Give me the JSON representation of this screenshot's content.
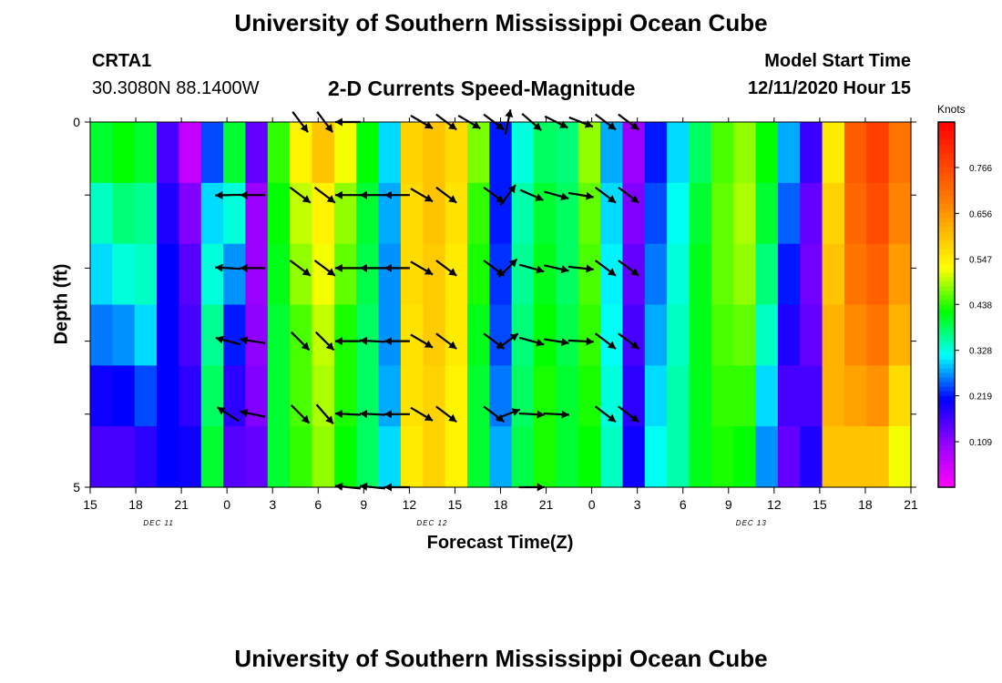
{
  "header": {
    "title": "University of Southern Mississippi Ocean Cube",
    "station_id": "CRTA1",
    "station_coords": "30.3080N 88.1400W",
    "chart_title": "2-D Currents Speed-Magnitude",
    "model_label": "Model Start Time",
    "model_time": "12/11/2020 Hour 15"
  },
  "footer": {
    "title": "University of Southern Mississippi Ocean Cube"
  },
  "chart_data": {
    "type": "heatmap",
    "title": "2-D Currents Speed-Magnitude",
    "xlabel": "Forecast Time(Z)",
    "ylabel": "Depth (ft)",
    "ylim": [
      0,
      5
    ],
    "y_ticks": [
      "0",
      "5"
    ],
    "x_tick_labels": [
      "15",
      "18",
      "21",
      "0",
      "3",
      "6",
      "9",
      "12",
      "15",
      "18",
      "21",
      "0",
      "3",
      "6",
      "9",
      "12",
      "15",
      "18",
      "21"
    ],
    "date_labels": [
      {
        "label": "DEC 11",
        "after_tick": 1
      },
      {
        "label": "DEC 12",
        "after_tick": 7
      },
      {
        "label": "DEC 13",
        "after_tick": 14
      }
    ],
    "colorbar": {
      "units": "Knots",
      "min": 0.0,
      "max": 0.875,
      "labels": [
        "0.766",
        "0.656",
        "0.547",
        "0.438",
        "0.328",
        "0.219",
        "0.109"
      ]
    },
    "speed_columns": [
      [
        0.4,
        0.34,
        0.3,
        0.26,
        0.2,
        0.16
      ],
      [
        0.42,
        0.37,
        0.33,
        0.27,
        0.21,
        0.16
      ],
      [
        0.4,
        0.36,
        0.34,
        0.3,
        0.24,
        0.18
      ],
      [
        0.16,
        0.19,
        0.21,
        0.21,
        0.21,
        0.21
      ],
      [
        0.06,
        0.12,
        0.15,
        0.16,
        0.18,
        0.2
      ],
      [
        0.24,
        0.3,
        0.33,
        0.36,
        0.38,
        0.4
      ],
      [
        0.4,
        0.33,
        0.27,
        0.22,
        0.18,
        0.15
      ],
      [
        0.14,
        0.1,
        0.1,
        0.11,
        0.12,
        0.14
      ],
      [
        0.44,
        0.42,
        0.41,
        0.4,
        0.4,
        0.4
      ],
      [
        0.54,
        0.5,
        0.48,
        0.45,
        0.45,
        0.44
      ],
      [
        0.6,
        0.54,
        0.52,
        0.5,
        0.49,
        0.48
      ],
      [
        0.52,
        0.48,
        0.46,
        0.43,
        0.43,
        0.42
      ],
      [
        0.42,
        0.4,
        0.39,
        0.38,
        0.38,
        0.38
      ],
      [
        0.3,
        0.28,
        0.27,
        0.27,
        0.28,
        0.3
      ],
      [
        0.58,
        0.57,
        0.57,
        0.56,
        0.56,
        0.55
      ],
      [
        0.6,
        0.6,
        0.59,
        0.59,
        0.58,
        0.58
      ],
      [
        0.57,
        0.56,
        0.55,
        0.55,
        0.54,
        0.54
      ],
      [
        0.47,
        0.44,
        0.43,
        0.41,
        0.4,
        0.4
      ],
      [
        0.22,
        0.22,
        0.23,
        0.24,
        0.26,
        0.28
      ],
      [
        0.33,
        0.35,
        0.36,
        0.37,
        0.38,
        0.39
      ],
      [
        0.38,
        0.4,
        0.41,
        0.42,
        0.43,
        0.43
      ],
      [
        0.37,
        0.38,
        0.38,
        0.39,
        0.4,
        0.4
      ],
      [
        0.48,
        0.46,
        0.45,
        0.44,
        0.43,
        0.42
      ],
      [
        0.28,
        0.3,
        0.31,
        0.32,
        0.33,
        0.34
      ],
      [
        0.1,
        0.12,
        0.14,
        0.16,
        0.18,
        0.2
      ],
      [
        0.22,
        0.24,
        0.26,
        0.28,
        0.3,
        0.32
      ],
      [
        0.3,
        0.32,
        0.33,
        0.34,
        0.35,
        0.35
      ],
      [
        0.38,
        0.4,
        0.41,
        0.41,
        0.41,
        0.41
      ],
      [
        0.45,
        0.46,
        0.46,
        0.45,
        0.44,
        0.43
      ],
      [
        0.48,
        0.49,
        0.48,
        0.46,
        0.44,
        0.42
      ],
      [
        0.42,
        0.4,
        0.37,
        0.34,
        0.3,
        0.27
      ],
      [
        0.28,
        0.25,
        0.22,
        0.19,
        0.16,
        0.14
      ],
      [
        0.17,
        0.14,
        0.13,
        0.14,
        0.16,
        0.19
      ],
      [
        0.55,
        0.58,
        0.6,
        0.62,
        0.62,
        0.6
      ],
      [
        0.74,
        0.72,
        0.7,
        0.67,
        0.64,
        0.6
      ],
      [
        0.78,
        0.76,
        0.73,
        0.7,
        0.66,
        0.6
      ],
      [
        0.7,
        0.68,
        0.65,
        0.62,
        0.57,
        0.52
      ]
    ],
    "vector_rows_depth": [
      0,
      1,
      2,
      3,
      4,
      5
    ],
    "vectors": [
      {
        "x": 16.8,
        "dir": [
          [
            0,
            0
          ],
          [
            -0.9,
            0.02
          ],
          [
            -0.9,
            -0.05
          ],
          [
            -0.95,
            -0.25
          ],
          [
            -0.85,
            -0.55
          ],
          [
            0,
            0
          ]
        ]
      },
      {
        "x": 19.8,
        "dir": [
          [
            0,
            0
          ],
          [
            -0.9,
            0
          ],
          [
            -0.9,
            0
          ],
          [
            -0.95,
            -0.15
          ],
          [
            -0.95,
            -0.2
          ],
          [
            0,
            0
          ]
        ]
      },
      {
        "x": 25.6,
        "dir": [
          [
            0.6,
            0.8
          ],
          [
            0.8,
            0.6
          ],
          [
            0.8,
            0.6
          ],
          [
            0.7,
            0.7
          ],
          [
            0.7,
            0.7
          ],
          [
            0,
            0
          ]
        ]
      },
      {
        "x": 28.6,
        "dir": [
          [
            0.6,
            0.8
          ],
          [
            0.8,
            0.6
          ],
          [
            0.8,
            0.6
          ],
          [
            0.7,
            0.7
          ],
          [
            0.65,
            0.75
          ],
          [
            0,
            0
          ]
        ]
      },
      {
        "x": 31.4,
        "dir": [
          [
            -0.9,
            0
          ],
          [
            -0.95,
            0
          ],
          [
            -0.95,
            0
          ],
          [
            -0.95,
            0
          ],
          [
            -0.95,
            -0.05
          ],
          [
            -0.95,
            -0.1
          ]
        ]
      },
      {
        "x": 34.4,
        "dir": [
          [
            0,
            0
          ],
          [
            -0.95,
            0
          ],
          [
            -0.95,
            0
          ],
          [
            -0.95,
            -0.05
          ],
          [
            -0.95,
            -0.05
          ],
          [
            -0.95,
            -0.1
          ]
        ]
      },
      {
        "x": 37.4,
        "dir": [
          [
            0,
            0
          ],
          [
            -0.95,
            0
          ],
          [
            -0.95,
            0
          ],
          [
            -0.95,
            0
          ],
          [
            -0.95,
            0
          ],
          [
            -0.95,
            0
          ]
        ]
      },
      {
        "x": 40.4,
        "dir": [
          [
            0.85,
            0.5
          ],
          [
            0.85,
            0.5
          ],
          [
            0.85,
            0.5
          ],
          [
            0.85,
            0.5
          ],
          [
            0.85,
            0.5
          ],
          [
            0,
            0
          ]
        ]
      },
      {
        "x": 43.4,
        "dir": [
          [
            0.8,
            0.6
          ],
          [
            0.8,
            0.6
          ],
          [
            0.8,
            0.6
          ],
          [
            0.8,
            0.6
          ],
          [
            0.8,
            0.6
          ],
          [
            0,
            0
          ]
        ]
      },
      {
        "x": 46.2,
        "dir": [
          [
            0.85,
            0.5
          ],
          [
            0,
            0
          ],
          [
            0,
            0
          ],
          [
            0,
            0
          ],
          [
            0,
            0
          ],
          [
            0,
            0
          ]
        ]
      },
      {
        "x": 49.2,
        "dir": [
          [
            0.8,
            0.6
          ],
          [
            0.8,
            0.6
          ],
          [
            0.8,
            0.6
          ],
          [
            0.8,
            0.6
          ],
          [
            0.8,
            0.6
          ],
          [
            0,
            0
          ]
        ]
      },
      {
        "x": 50.9,
        "dir": [
          [
            0.2,
            -0.98
          ],
          [
            0.6,
            -0.8
          ],
          [
            0.7,
            -0.7
          ],
          [
            0.8,
            -0.6
          ],
          [
            0.9,
            -0.35
          ],
          [
            0,
            0
          ]
        ]
      },
      {
        "x": 53.8,
        "dir": [
          [
            0.75,
            0.65
          ],
          [
            0.9,
            0.4
          ],
          [
            0.9,
            0.25
          ],
          [
            0.9,
            0.25
          ],
          [
            0.95,
            0.05
          ],
          [
            0.95,
            0
          ]
        ]
      },
      {
        "x": 56.8,
        "dir": [
          [
            0.9,
            0.45
          ],
          [
            0.9,
            0.25
          ],
          [
            0.9,
            0.2
          ],
          [
            0.95,
            0.15
          ],
          [
            0.95,
            0.05
          ],
          [
            0,
            0
          ]
        ]
      },
      {
        "x": 59.8,
        "dir": [
          [
            0.9,
            0.35
          ],
          [
            0.9,
            0.15
          ],
          [
            0.95,
            0.1
          ],
          [
            0.95,
            0.05
          ],
          [
            0,
            0
          ],
          [
            0,
            0
          ]
        ]
      },
      {
        "x": 62.8,
        "dir": [
          [
            0.8,
            0.6
          ],
          [
            0.8,
            0.6
          ],
          [
            0.8,
            0.6
          ],
          [
            0.8,
            0.6
          ],
          [
            0.8,
            0.6
          ],
          [
            0,
            0
          ]
        ]
      },
      {
        "x": 65.6,
        "dir": [
          [
            0.8,
            0.6
          ],
          [
            0.8,
            0.6
          ],
          [
            0.8,
            0.6
          ],
          [
            0.8,
            0.6
          ],
          [
            0.8,
            0.6
          ],
          [
            0,
            0
          ]
        ]
      }
    ]
  }
}
